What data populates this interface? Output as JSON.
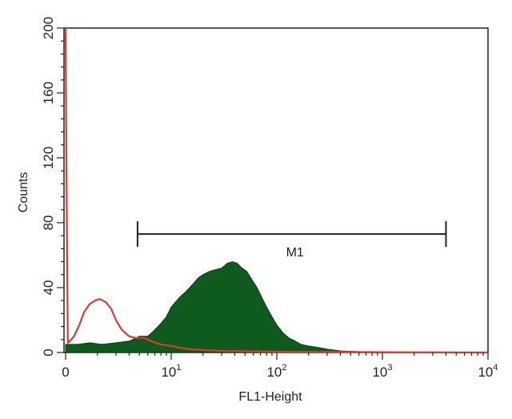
{
  "chart_data": {
    "type": "area",
    "xlabel": "FL1-Height",
    "ylabel": "Counts",
    "xscale": "log",
    "xlim": [
      1,
      10000
    ],
    "ylim": [
      0,
      200
    ],
    "x_ticks": [
      {
        "value": 1,
        "base": "0",
        "exp": ""
      },
      {
        "value": 10,
        "base": "10",
        "exp": "1"
      },
      {
        "value": 100,
        "base": "10",
        "exp": "2"
      },
      {
        "value": 1000,
        "base": "10",
        "exp": "3"
      },
      {
        "value": 10000,
        "base": "10",
        "exp": "4"
      }
    ],
    "y_ticks": [
      "0",
      "40",
      "80",
      "120",
      "160",
      "200"
    ],
    "y_tick_values": [
      0,
      40,
      80,
      120,
      160,
      200
    ],
    "gate": {
      "label": "M1",
      "x_start": 4.8,
      "x_end": 4000,
      "y": 73
    },
    "series": [
      {
        "kind": "filled-histogram",
        "color": "#0f5a1e",
        "x": [
          1,
          1.3,
          1.7,
          2.2,
          3,
          4,
          5,
          6,
          7,
          8,
          9,
          10,
          12,
          14,
          16,
          18,
          20,
          23,
          26,
          30,
          34,
          38,
          42,
          47,
          52,
          58,
          65,
          72,
          80,
          90,
          100,
          115,
          130,
          150,
          170,
          200,
          250,
          300,
          400,
          600,
          1000,
          10000
        ],
        "values": [
          5,
          5,
          6,
          5,
          6,
          7,
          10,
          10,
          14,
          18,
          22,
          28,
          34,
          38,
          42,
          46,
          48,
          50,
          51,
          52,
          55,
          56,
          55,
          52,
          50,
          45,
          40,
          34,
          28,
          22,
          17,
          12,
          9,
          7,
          5,
          4,
          3,
          2,
          1,
          0.5,
          0.2,
          0
        ]
      },
      {
        "kind": "outline-histogram",
        "color": "#e0392b",
        "x": [
          1,
          1.02,
          1.05,
          1.1,
          1.2,
          1.35,
          1.5,
          1.7,
          1.9,
          2.1,
          2.4,
          2.7,
          3.0,
          3.4,
          4.0,
          4.6,
          5.5,
          6.5,
          8,
          10,
          12,
          15,
          20,
          30,
          50,
          100,
          200,
          500,
          1000,
          10000
        ],
        "values": [
          200,
          110,
          6,
          7,
          10,
          17,
          25,
          30,
          32,
          33,
          31,
          27,
          20,
          14,
          10,
          9,
          9,
          7,
          5,
          4,
          3,
          2,
          1.5,
          1,
          0.8,
          0.5,
          0.4,
          0.3,
          0.2,
          0
        ]
      }
    ]
  }
}
